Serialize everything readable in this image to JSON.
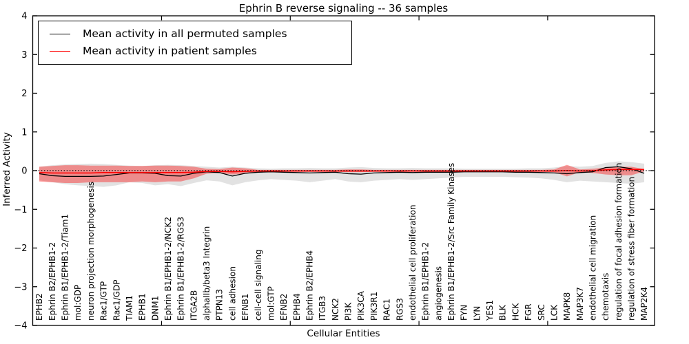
{
  "title": "Ephrin B reverse signaling -- 36 samples",
  "legend": {
    "items": [
      {
        "label": "Mean activity in all permuted samples",
        "color": "#000000"
      },
      {
        "label": "Mean activity in patient samples",
        "color": "#ff0000"
      }
    ]
  },
  "chart_data": {
    "type": "line",
    "title": "Ephrin B reverse signaling -- 36 samples",
    "xlabel": "Cellular Entities",
    "ylabel": "Inferred Activity",
    "ylim": [
      -4,
      4
    ],
    "yticks": [
      4,
      3,
      2,
      1,
      0,
      -1,
      -2,
      -3,
      -4
    ],
    "grid": false,
    "legend_position": "upper left",
    "colors": {
      "permuted": "#000000",
      "patient": "#ff0000",
      "permuted_band": "#bfbfbf",
      "patient_band": "#ff0000"
    },
    "categories": [
      "EPHB2",
      "Ephrin B2/EPHB1-2",
      "Ephrin B1/EPHB1-2/Tiam1",
      "mol:GDP",
      "neuron projection morphogenesis",
      "Rac1/GTP",
      "Rac1/GDP",
      "TIAM1",
      "EPHB1",
      "DNM1",
      "Ephrin B1/EPHB1-2/NCK2",
      "Ephrin B1/EPHB1-2/RGS3",
      "ITGA2B",
      "alphaIIb/beta3 Integrin",
      "PTPN13",
      "cell adhesion",
      "EFNB1",
      "cell-cell signaling",
      "mol:GTP",
      "EFNB2",
      "EPHB4",
      "Ephrin B2/EPHB4",
      "ITGB3",
      "NCK2",
      "PI3K",
      "PIK3CA",
      "PIK3R1",
      "RAC1",
      "RGS3",
      "endothelial cell proliferation",
      "Ephrin B1/EPHB1-2",
      "angiogenesis",
      "Ephrin B1/EPHB1-2/Src Family Kinases",
      "FYN",
      "LYN",
      "YES1",
      "BLK",
      "HCK",
      "FGR",
      "SRC",
      "LCK",
      "MAPK8",
      "MAP3K7",
      "endothelial cell migration",
      "chemotaxis",
      "regulation of focal adhesion formation",
      "regulation of stress fiber formation",
      "MAP2K4"
    ],
    "series": [
      {
        "name": "Mean activity in all permuted samples",
        "color": "#000000",
        "width": 1.3,
        "style": "solid",
        "values": [
          -0.08,
          -0.13,
          -0.15,
          -0.15,
          -0.15,
          -0.14,
          -0.1,
          -0.06,
          -0.06,
          -0.07,
          -0.13,
          -0.14,
          -0.07,
          -0.03,
          -0.05,
          -0.14,
          -0.07,
          -0.04,
          -0.03,
          -0.04,
          -0.05,
          -0.06,
          -0.05,
          -0.04,
          -0.08,
          -0.09,
          -0.06,
          -0.05,
          -0.04,
          -0.05,
          -0.04,
          -0.04,
          -0.04,
          -0.03,
          -0.03,
          -0.03,
          -0.03,
          -0.04,
          -0.04,
          -0.05,
          -0.06,
          -0.08,
          -0.05,
          -0.03,
          0.08,
          0.1,
          0.05,
          -0.07
        ]
      },
      {
        "name": "Mean activity in patient samples",
        "color": "#ff0000",
        "width": 1.6,
        "style": "solid",
        "values": [
          -0.05,
          -0.06,
          -0.06,
          -0.06,
          -0.06,
          -0.05,
          -0.05,
          -0.05,
          -0.05,
          -0.05,
          -0.05,
          -0.05,
          -0.04,
          -0.02,
          -0.02,
          -0.03,
          -0.02,
          -0.01,
          -0.01,
          -0.01,
          -0.01,
          -0.01,
          -0.01,
          -0.01,
          -0.01,
          -0.01,
          -0.01,
          -0.01,
          -0.01,
          -0.01,
          -0.01,
          -0.01,
          -0.01,
          -0.01,
          -0.01,
          -0.01,
          -0.01,
          -0.01,
          -0.01,
          -0.01,
          -0.01,
          0.0,
          -0.01,
          0.0,
          0.02,
          0.03,
          0.03,
          0.03
        ]
      }
    ],
    "reference_line": {
      "name": "zero-reference",
      "value": 0,
      "color": "#000000",
      "style": "dotted"
    },
    "bands": [
      {
        "name": "permuted-std-band",
        "color": "#bfbfbf",
        "opacity": 0.45,
        "upper": [
          0.1,
          0.14,
          0.16,
          0.17,
          0.18,
          0.17,
          0.15,
          0.13,
          0.12,
          0.14,
          0.15,
          0.14,
          0.12,
          0.1,
          0.08,
          0.1,
          0.08,
          0.06,
          0.05,
          0.06,
          0.06,
          0.07,
          0.06,
          0.06,
          0.08,
          0.09,
          0.07,
          0.06,
          0.06,
          0.07,
          0.06,
          0.06,
          0.06,
          0.05,
          0.05,
          0.05,
          0.05,
          0.05,
          0.06,
          0.06,
          0.08,
          0.12,
          0.1,
          0.12,
          0.2,
          0.24,
          0.22,
          0.18
        ],
        "lower": [
          -0.25,
          -0.3,
          -0.35,
          -0.38,
          -0.4,
          -0.42,
          -0.38,
          -0.3,
          -0.32,
          -0.38,
          -0.35,
          -0.4,
          -0.32,
          -0.25,
          -0.28,
          -0.38,
          -0.3,
          -0.25,
          -0.22,
          -0.24,
          -0.26,
          -0.3,
          -0.26,
          -0.22,
          -0.28,
          -0.3,
          -0.26,
          -0.24,
          -0.22,
          -0.24,
          -0.22,
          -0.2,
          -0.18,
          -0.16,
          -0.16,
          -0.16,
          -0.16,
          -0.17,
          -0.18,
          -0.2,
          -0.24,
          -0.3,
          -0.26,
          -0.28,
          -0.3,
          -0.32,
          -0.34,
          -0.3
        ]
      },
      {
        "name": "patient-std-band",
        "color": "#ff0000",
        "opacity": 0.38,
        "upper": [
          0.1,
          0.12,
          0.14,
          0.14,
          0.13,
          0.13,
          0.13,
          0.12,
          0.12,
          0.13,
          0.13,
          0.12,
          0.1,
          0.05,
          0.04,
          0.08,
          0.06,
          0.02,
          0.02,
          0.02,
          0.02,
          0.02,
          0.02,
          0.02,
          0.03,
          0.03,
          0.02,
          0.02,
          0.02,
          0.02,
          0.02,
          0.02,
          0.02,
          0.02,
          0.02,
          0.02,
          0.02,
          0.02,
          0.02,
          0.02,
          0.03,
          0.15,
          0.03,
          0.05,
          0.08,
          0.1,
          0.1,
          0.04
        ],
        "lower": [
          -0.28,
          -0.3,
          -0.32,
          -0.32,
          -0.3,
          -0.3,
          -0.3,
          -0.3,
          -0.28,
          -0.3,
          -0.28,
          -0.28,
          -0.2,
          -0.08,
          -0.06,
          -0.1,
          -0.08,
          -0.03,
          -0.03,
          -0.03,
          -0.03,
          -0.03,
          -0.03,
          -0.03,
          -0.04,
          -0.04,
          -0.03,
          -0.03,
          -0.03,
          -0.03,
          -0.03,
          -0.03,
          -0.03,
          -0.03,
          -0.03,
          -0.03,
          -0.03,
          -0.03,
          -0.03,
          -0.03,
          -0.04,
          -0.15,
          -0.04,
          -0.06,
          -0.1,
          -0.12,
          -0.12,
          -0.02
        ]
      }
    ]
  }
}
